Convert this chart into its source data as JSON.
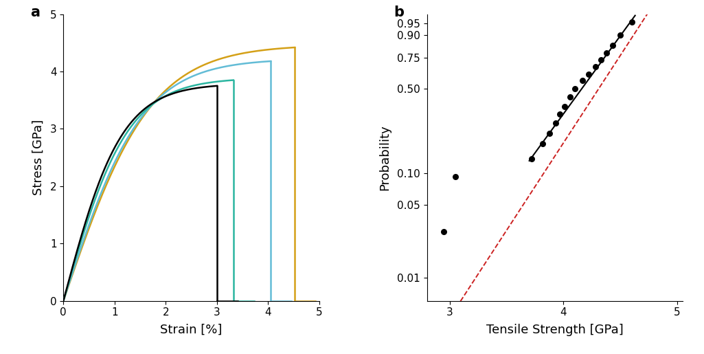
{
  "panel_a_label": "a",
  "panel_b_label": "b",
  "stress_strain_curves": [
    {
      "color": "#000000",
      "strain_end": 3.0,
      "stress_peak": 3.75,
      "label": "black"
    },
    {
      "color": "#2ab5a0",
      "strain_end": 3.32,
      "stress_peak": 3.85,
      "label": "teal"
    },
    {
      "color": "#62bcd6",
      "strain_end": 4.05,
      "stress_peak": 4.18,
      "label": "lightblue"
    },
    {
      "color": "#d4a017",
      "strain_end": 4.52,
      "stress_peak": 4.42,
      "label": "gold"
    }
  ],
  "scatter_x": [
    2.95,
    3.05,
    3.72,
    3.82,
    3.88,
    3.93,
    3.97,
    4.01,
    4.06,
    4.1,
    4.17,
    4.22,
    4.28,
    4.33,
    4.38,
    4.43,
    4.5,
    4.6
  ],
  "scatter_y_prob": [
    0.028,
    0.092,
    0.135,
    0.185,
    0.225,
    0.275,
    0.325,
    0.375,
    0.44,
    0.5,
    0.565,
    0.62,
    0.68,
    0.735,
    0.79,
    0.84,
    0.9,
    0.955
  ],
  "xlim_a": [
    0,
    5
  ],
  "ylim_a": [
    0,
    5
  ],
  "xlim_b": [
    2.8,
    5.05
  ],
  "prob_ticks": [
    0.01,
    0.05,
    0.1,
    0.5,
    0.75,
    0.9,
    0.95
  ],
  "prob_tick_labels": [
    "0.01",
    "0.05",
    "0.10",
    "0.50",
    "0.75",
    "0.90",
    "0.95"
  ],
  "prob_ylim_lo": 0.006,
  "prob_ylim_hi": 0.975,
  "xlabel_a": "Strain [%]",
  "ylabel_a": "Stress [GPa]",
  "xlabel_b": "Tensile Strength [GPa]",
  "ylabel_b": "Probability",
  "background_color": "#ffffff",
  "curve_lw": 1.8,
  "scatter_color": "#000000",
  "scatter_size": 42,
  "fit_line_color": "#000000",
  "dashed_line_color": "#cc2222",
  "tanh_scale": 0.38
}
